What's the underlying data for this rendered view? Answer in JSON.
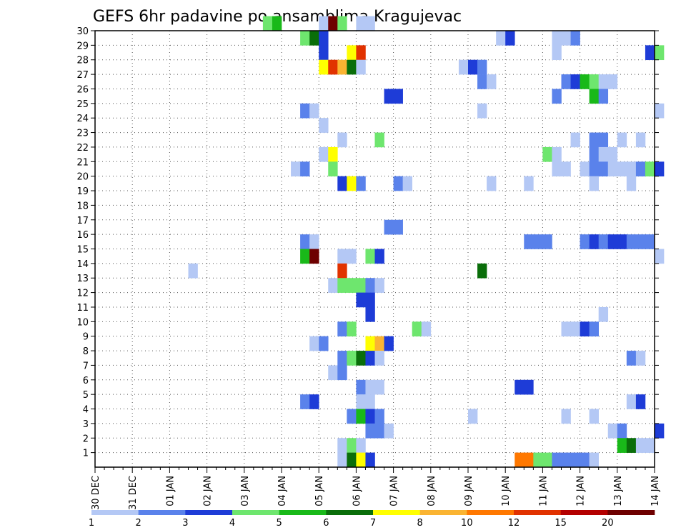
{
  "chart_data": {
    "type": "heatmap",
    "title": "GEFS 6hr padavine po ansamblima Kragujevac",
    "xlabel": "",
    "ylabel": "",
    "x_ticks": [
      "30 DEC",
      "31 DEC",
      "01 JAN",
      "02 JAN",
      "03 JAN",
      "04 JAN",
      "05 JAN",
      "06 JAN",
      "07 JAN",
      "08 JAN",
      "09 JAN",
      "10 JAN",
      "11 JAN",
      "12 JAN",
      "13 JAN",
      "14 JAN"
    ],
    "x_range_days": [
      0,
      15
    ],
    "steps_per_day": 4,
    "y_ticks": [
      1,
      2,
      3,
      4,
      5,
      6,
      7,
      8,
      9,
      10,
      11,
      12,
      13,
      14,
      15,
      16,
      17,
      18,
      19,
      20,
      21,
      22,
      23,
      24,
      25,
      26,
      27,
      28,
      29,
      30
    ],
    "y_range": [
      0,
      30
    ],
    "grid": true,
    "legend": {
      "position": "bottom",
      "labels": [
        "1",
        "2",
        "3",
        "4",
        "5",
        "6",
        "7",
        "8",
        "10",
        "12",
        "15",
        "20"
      ],
      "colors": [
        "#b4c8f5",
        "#5a82eb",
        "#1e3cd7",
        "#6ee66e",
        "#19b919",
        "#0a6e0a",
        "#ffff00",
        "#fab432",
        "#ff7800",
        "#e13200",
        "#b40000",
        "#6e0000"
      ]
    },
    "cells": [
      [
        30,
        4.5,
        1,
        4
      ],
      [
        30,
        4.75,
        1,
        5
      ],
      [
        30,
        6.0,
        1,
        1
      ],
      [
        30,
        6.25,
        1,
        12
      ],
      [
        30,
        6.5,
        1,
        4
      ],
      [
        30,
        7.0,
        2,
        1
      ],
      [
        29,
        5.5,
        1,
        4
      ],
      [
        29,
        5.75,
        1,
        6
      ],
      [
        29,
        6.0,
        1,
        3
      ],
      [
        29,
        10.75,
        1,
        1
      ],
      [
        29,
        11.0,
        1,
        3
      ],
      [
        29,
        12.25,
        2,
        1
      ],
      [
        29,
        12.75,
        1,
        2
      ],
      [
        28,
        6.0,
        1,
        3
      ],
      [
        28,
        6.75,
        1,
        7
      ],
      [
        28,
        7.0,
        1,
        10
      ],
      [
        28,
        12.25,
        1,
        1
      ],
      [
        28,
        14.75,
        1,
        3
      ],
      [
        28,
        15.0,
        1,
        4
      ],
      [
        27,
        6.0,
        1,
        7
      ],
      [
        27,
        6.25,
        1,
        10
      ],
      [
        27,
        6.5,
        1,
        8
      ],
      [
        27,
        6.75,
        1,
        6
      ],
      [
        27,
        7.0,
        1,
        1
      ],
      [
        27,
        9.75,
        1,
        1
      ],
      [
        27,
        10.0,
        1,
        3
      ],
      [
        27,
        10.25,
        1,
        2
      ],
      [
        26,
        10.25,
        1,
        2
      ],
      [
        26,
        10.5,
        1,
        1
      ],
      [
        26,
        12.5,
        1,
        2
      ],
      [
        26,
        12.75,
        1,
        3
      ],
      [
        26,
        13.0,
        1,
        5
      ],
      [
        26,
        13.25,
        1,
        4
      ],
      [
        26,
        13.5,
        2,
        1
      ],
      [
        25,
        7.75,
        2,
        3
      ],
      [
        25,
        12.25,
        1,
        2
      ],
      [
        25,
        13.25,
        1,
        5
      ],
      [
        25,
        13.5,
        1,
        2
      ],
      [
        24,
        5.5,
        1,
        2
      ],
      [
        24,
        5.75,
        1,
        1
      ],
      [
        24,
        10.25,
        1,
        1
      ],
      [
        24,
        15.0,
        1,
        1
      ],
      [
        23,
        6.0,
        1,
        1
      ],
      [
        22,
        6.5,
        1,
        1
      ],
      [
        22,
        7.5,
        1,
        4
      ],
      [
        22,
        12.75,
        1,
        1
      ],
      [
        22,
        13.25,
        2,
        2
      ],
      [
        22,
        14.0,
        1,
        1
      ],
      [
        22,
        14.5,
        1,
        1
      ],
      [
        21,
        6.0,
        1,
        1
      ],
      [
        21,
        6.25,
        1,
        7
      ],
      [
        21,
        12.0,
        1,
        4
      ],
      [
        21,
        12.25,
        1,
        1
      ],
      [
        21,
        13.25,
        1,
        2
      ],
      [
        21,
        13.5,
        2,
        1
      ],
      [
        20,
        5.25,
        1,
        1
      ],
      [
        20,
        5.5,
        1,
        2
      ],
      [
        20,
        6.25,
        1,
        4
      ],
      [
        20,
        12.25,
        2,
        1
      ],
      [
        20,
        13.0,
        1,
        1
      ],
      [
        20,
        13.25,
        2,
        2
      ],
      [
        20,
        13.75,
        2,
        1
      ],
      [
        20,
        14.25,
        1,
        1
      ],
      [
        20,
        14.5,
        1,
        2
      ],
      [
        20,
        14.75,
        1,
        4
      ],
      [
        20,
        15.0,
        1,
        3
      ],
      [
        19,
        6.5,
        1,
        3
      ],
      [
        19,
        6.75,
        1,
        7
      ],
      [
        19,
        7.0,
        1,
        2
      ],
      [
        19,
        8.0,
        1,
        2
      ],
      [
        19,
        8.25,
        1,
        1
      ],
      [
        19,
        10.5,
        1,
        1
      ],
      [
        19,
        11.5,
        1,
        1
      ],
      [
        19,
        13.25,
        1,
        1
      ],
      [
        19,
        14.25,
        1,
        1
      ],
      [
        16,
        7.75,
        2,
        2
      ],
      [
        15,
        5.5,
        1,
        2
      ],
      [
        15,
        5.75,
        1,
        1
      ],
      [
        15,
        11.5,
        3,
        2
      ],
      [
        15,
        13.0,
        1,
        2
      ],
      [
        15,
        13.25,
        1,
        3
      ],
      [
        15,
        13.5,
        1,
        2
      ],
      [
        15,
        13.75,
        2,
        3
      ],
      [
        15,
        14.25,
        3,
        2
      ],
      [
        14,
        5.5,
        1,
        5
      ],
      [
        14,
        5.75,
        1,
        12
      ],
      [
        14,
        6.5,
        2,
        1
      ],
      [
        14,
        7.25,
        1,
        4
      ],
      [
        14,
        7.5,
        1,
        3
      ],
      [
        14,
        15.0,
        1,
        1
      ],
      [
        13,
        2.5,
        1,
        1
      ],
      [
        13,
        6.5,
        1,
        10
      ],
      [
        13,
        10.25,
        1,
        6
      ],
      [
        12,
        6.25,
        1,
        1
      ],
      [
        12,
        6.5,
        3,
        4
      ],
      [
        12,
        7.25,
        1,
        2
      ],
      [
        12,
        7.5,
        1,
        1
      ],
      [
        11,
        7.0,
        2,
        3
      ],
      [
        10,
        7.25,
        1,
        3
      ],
      [
        10,
        13.5,
        1,
        1
      ],
      [
        9,
        6.5,
        1,
        2
      ],
      [
        9,
        6.75,
        1,
        4
      ],
      [
        9,
        8.5,
        1,
        4
      ],
      [
        9,
        8.75,
        1,
        1
      ],
      [
        9,
        12.5,
        2,
        1
      ],
      [
        9,
        13.0,
        1,
        3
      ],
      [
        9,
        13.25,
        1,
        2
      ],
      [
        8,
        5.75,
        1,
        1
      ],
      [
        8,
        6.0,
        1,
        2
      ],
      [
        8,
        7.25,
        1,
        7
      ],
      [
        8,
        7.5,
        1,
        8
      ],
      [
        8,
        7.75,
        1,
        3
      ],
      [
        7,
        6.5,
        1,
        2
      ],
      [
        7,
        6.75,
        1,
        4
      ],
      [
        7,
        7.0,
        1,
        6
      ],
      [
        7,
        7.25,
        1,
        3
      ],
      [
        7,
        7.5,
        1,
        1
      ],
      [
        7,
        14.25,
        1,
        2
      ],
      [
        7,
        14.5,
        1,
        1
      ],
      [
        6,
        6.25,
        1,
        1
      ],
      [
        6,
        6.5,
        1,
        2
      ],
      [
        5,
        7.0,
        1,
        2
      ],
      [
        5,
        7.25,
        2,
        1
      ],
      [
        5,
        11.25,
        2,
        3
      ],
      [
        4,
        5.5,
        1,
        2
      ],
      [
        5,
        5.75,
        0,
        0
      ],
      [
        4,
        5.75,
        1,
        3
      ],
      [
        4,
        7.0,
        2,
        1
      ],
      [
        4,
        14.25,
        1,
        1
      ],
      [
        4,
        14.5,
        1,
        3
      ],
      [
        3,
        6.75,
        1,
        2
      ],
      [
        3,
        7.0,
        1,
        5
      ],
      [
        3,
        7.25,
        1,
        3
      ],
      [
        3,
        7.5,
        1,
        2
      ],
      [
        3,
        10.0,
        1,
        1
      ],
      [
        3,
        12.5,
        1,
        1
      ],
      [
        3,
        13.25,
        1,
        1
      ],
      [
        2,
        7.25,
        2,
        2
      ],
      [
        2,
        7.75,
        1,
        1
      ],
      [
        2,
        13.75,
        1,
        1
      ],
      [
        2,
        14.0,
        1,
        2
      ],
      [
        2,
        15.0,
        1,
        3
      ],
      [
        1,
        6.5,
        1,
        1
      ],
      [
        1,
        6.75,
        1,
        4
      ],
      [
        1,
        7.0,
        1,
        1
      ],
      [
        1,
        14.0,
        1,
        5
      ],
      [
        1,
        14.25,
        1,
        6
      ],
      [
        1,
        14.5,
        2,
        1
      ],
      [
        0,
        6.5,
        1,
        1
      ],
      [
        0,
        6.75,
        1,
        6
      ],
      [
        0,
        7.0,
        1,
        7
      ],
      [
        0,
        7.25,
        1,
        3
      ],
      [
        0,
        11.25,
        2,
        9
      ],
      [
        0,
        11.75,
        2,
        4
      ],
      [
        0,
        12.25,
        4,
        2
      ],
      [
        0,
        13.25,
        1,
        1
      ]
    ]
  }
}
